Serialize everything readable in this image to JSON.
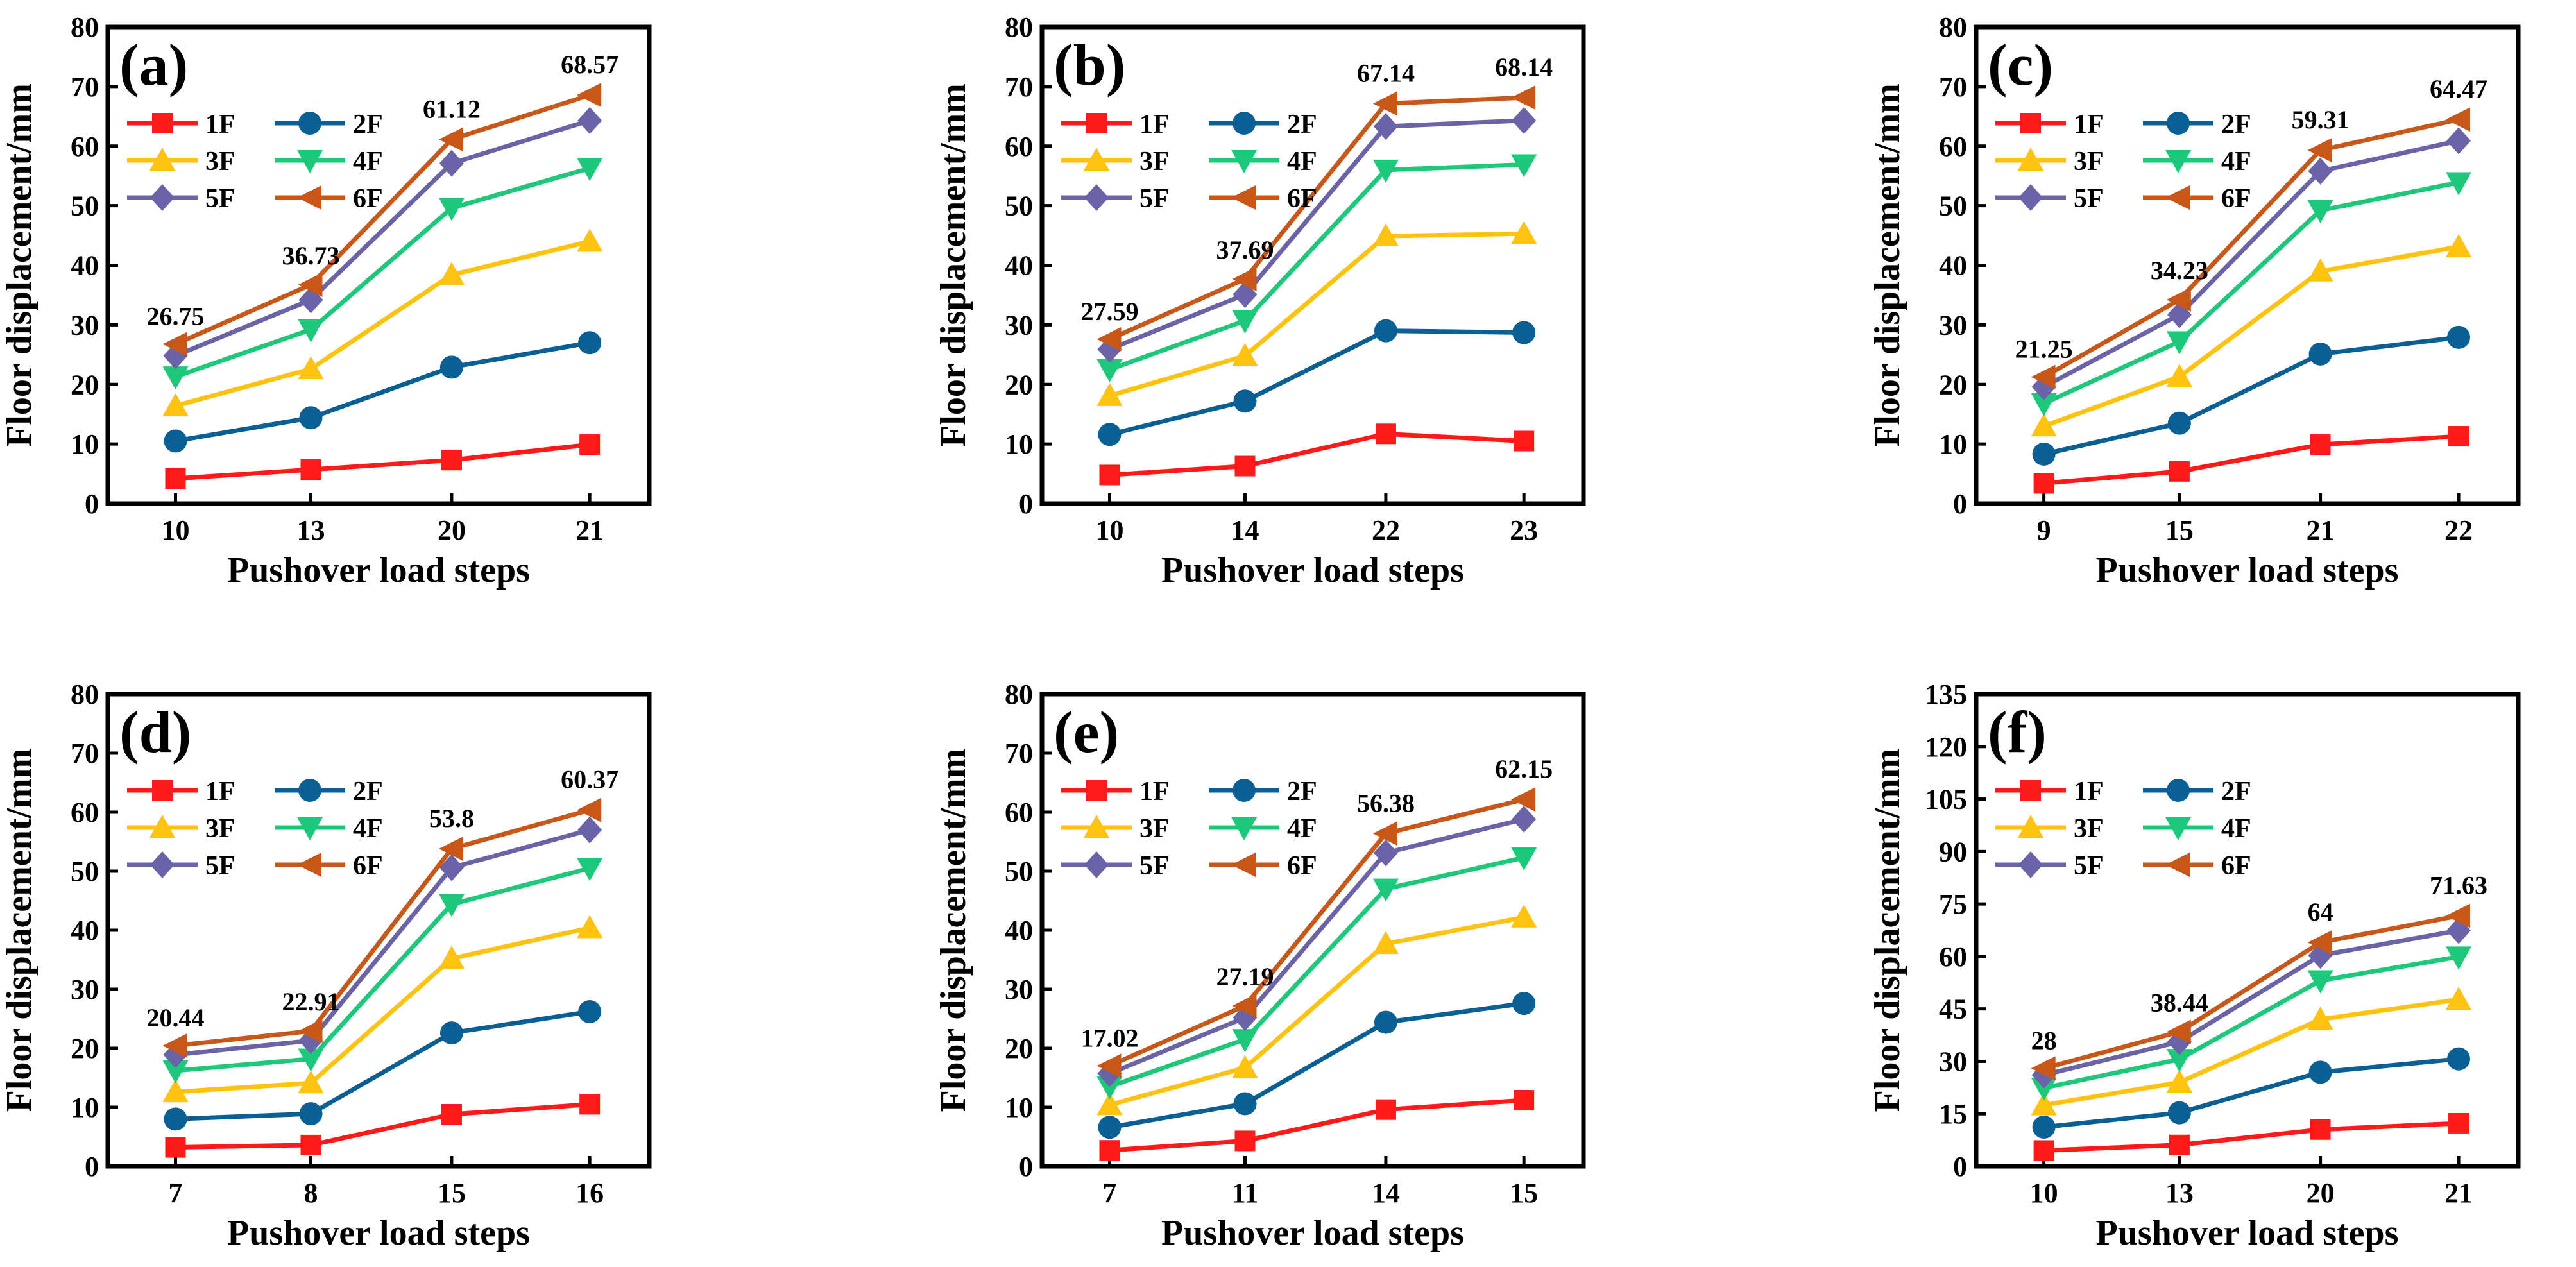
{
  "figure": {
    "xlabel": "Pushover load steps",
    "ylabel": "Floor displacement/mm"
  },
  "series_style": [
    {
      "name": "1F",
      "color": "#ff1a1a",
      "marker": "square"
    },
    {
      "name": "2F",
      "color": "#0a5f94",
      "marker": "circle"
    },
    {
      "name": "3F",
      "color": "#ffc20e",
      "marker": "triangle-up"
    },
    {
      "name": "4F",
      "color": "#1ec87a",
      "marker": "triangle-down"
    },
    {
      "name": "5F",
      "color": "#6b63a8",
      "marker": "diamond"
    },
    {
      "name": "6F",
      "color": "#c8581a",
      "marker": "triangle-left"
    }
  ],
  "chart_data": [
    {
      "type": "line",
      "panel_label": "(a)",
      "xlabel": "Pushover load steps",
      "ylabel": "Floor displacement/mm",
      "categories": [
        "10",
        "13",
        "20",
        "21"
      ],
      "ylim": [
        0,
        80
      ],
      "yticks": [
        0,
        10,
        20,
        30,
        40,
        50,
        60,
        70,
        80
      ],
      "series": [
        {
          "name": "1F",
          "values": [
            4.2,
            5.7,
            7.3,
            9.9
          ]
        },
        {
          "name": "2F",
          "values": [
            10.5,
            14.4,
            22.9,
            27.0
          ]
        },
        {
          "name": "3F",
          "values": [
            16.4,
            22.6,
            38.4,
            44.0
          ]
        },
        {
          "name": "4F",
          "values": [
            21.3,
            29.2,
            49.6,
            56.3
          ]
        },
        {
          "name": "5F",
          "values": [
            24.8,
            34.2,
            57.1,
            64.3
          ]
        },
        {
          "name": "6F",
          "values": [
            26.75,
            36.73,
            61.12,
            68.57
          ]
        }
      ],
      "annotations": [
        "26.75",
        "36.73",
        "61.12",
        "68.57"
      ]
    },
    {
      "type": "line",
      "panel_label": "(b)",
      "xlabel": "Pushover load steps",
      "ylabel": "Floor displacement/mm",
      "categories": [
        "10",
        "14",
        "22",
        "23"
      ],
      "ylim": [
        0,
        80
      ],
      "yticks": [
        0,
        10,
        20,
        30,
        40,
        50,
        60,
        70,
        80
      ],
      "series": [
        {
          "name": "1F",
          "values": [
            4.8,
            6.3,
            11.7,
            10.5
          ]
        },
        {
          "name": "2F",
          "values": [
            11.6,
            17.2,
            29.0,
            28.7
          ]
        },
        {
          "name": "3F",
          "values": [
            18.1,
            24.8,
            44.9,
            45.3
          ]
        },
        {
          "name": "4F",
          "values": [
            22.5,
            30.7,
            56.0,
            56.9
          ]
        },
        {
          "name": "5F",
          "values": [
            25.9,
            35.1,
            63.3,
            64.3
          ]
        },
        {
          "name": "6F",
          "values": [
            27.59,
            37.69,
            67.14,
            68.14
          ]
        }
      ],
      "annotations": [
        "27.59",
        "37.69",
        "67.14",
        "68.14"
      ]
    },
    {
      "type": "line",
      "panel_label": "(c)",
      "xlabel": "Pushover load steps",
      "ylabel": "Floor displacement/mm",
      "categories": [
        "9",
        "15",
        "21",
        "22"
      ],
      "ylim": [
        0,
        80
      ],
      "yticks": [
        0,
        10,
        20,
        30,
        40,
        50,
        60,
        70,
        80
      ],
      "series": [
        {
          "name": "1F",
          "values": [
            3.4,
            5.4,
            9.9,
            11.3
          ]
        },
        {
          "name": "2F",
          "values": [
            8.3,
            13.5,
            25.1,
            27.9
          ]
        },
        {
          "name": "3F",
          "values": [
            13.0,
            21.3,
            39.0,
            43.1
          ]
        },
        {
          "name": "4F",
          "values": [
            16.8,
            27.2,
            49.2,
            53.9
          ]
        },
        {
          "name": "5F",
          "values": [
            19.6,
            31.7,
            55.8,
            60.9
          ]
        },
        {
          "name": "6F",
          "values": [
            21.25,
            34.23,
            59.31,
            64.47
          ]
        }
      ],
      "annotations": [
        "21.25",
        "34.23",
        "59.31",
        "64.47"
      ]
    },
    {
      "type": "line",
      "panel_label": "(d)",
      "xlabel": "Pushover load steps",
      "ylabel": "Floor displacement/mm",
      "categories": [
        "7",
        "8",
        "15",
        "16"
      ],
      "ylim": [
        0,
        80
      ],
      "yticks": [
        0,
        10,
        20,
        30,
        40,
        50,
        60,
        70,
        80
      ],
      "series": [
        {
          "name": "1F",
          "values": [
            3.2,
            3.6,
            8.8,
            10.5
          ]
        },
        {
          "name": "2F",
          "values": [
            8.0,
            8.9,
            22.6,
            26.2
          ]
        },
        {
          "name": "3F",
          "values": [
            12.6,
            14.1,
            35.2,
            40.4
          ]
        },
        {
          "name": "4F",
          "values": [
            16.2,
            18.2,
            44.4,
            50.5
          ]
        },
        {
          "name": "5F",
          "values": [
            18.9,
            21.3,
            50.6,
            57.0
          ]
        },
        {
          "name": "6F",
          "values": [
            20.44,
            22.91,
            53.8,
            60.37
          ]
        }
      ],
      "annotations": [
        "20.44",
        "22.91",
        "53.8",
        "60.37"
      ]
    },
    {
      "type": "line",
      "panel_label": "(e)",
      "xlabel": "Pushover load steps",
      "ylabel": "Floor displacement/mm",
      "categories": [
        "7",
        "11",
        "14",
        "15"
      ],
      "ylim": [
        0,
        80
      ],
      "yticks": [
        0,
        10,
        20,
        30,
        40,
        50,
        60,
        70,
        80
      ],
      "series": [
        {
          "name": "1F",
          "values": [
            2.7,
            4.3,
            9.6,
            11.2
          ]
        },
        {
          "name": "2F",
          "values": [
            6.6,
            10.6,
            24.4,
            27.6
          ]
        },
        {
          "name": "3F",
          "values": [
            10.4,
            16.7,
            37.7,
            42.2
          ]
        },
        {
          "name": "4F",
          "values": [
            13.5,
            21.5,
            47.0,
            52.3
          ]
        },
        {
          "name": "5F",
          "values": [
            15.7,
            25.2,
            53.1,
            58.8
          ]
        },
        {
          "name": "6F",
          "values": [
            17.02,
            27.19,
            56.38,
            62.15
          ]
        }
      ],
      "annotations": [
        "17.02",
        "27.19",
        "56.38",
        "62.15"
      ]
    },
    {
      "type": "line",
      "panel_label": "(f)",
      "xlabel": "Pushover load steps",
      "ylabel": "Floor displacement/mm",
      "categories": [
        "10",
        "13",
        "20",
        "21"
      ],
      "ylim": [
        0,
        135
      ],
      "yticks": [
        0,
        15,
        30,
        45,
        60,
        75,
        90,
        105,
        120,
        135
      ],
      "series": [
        {
          "name": "1F",
          "values": [
            4.5,
            6.1,
            10.5,
            12.3
          ]
        },
        {
          "name": "2F",
          "values": [
            11.2,
            15.3,
            26.9,
            30.7
          ]
        },
        {
          "name": "3F",
          "values": [
            17.5,
            24.0,
            42.0,
            47.7
          ]
        },
        {
          "name": "4F",
          "values": [
            22.4,
            30.6,
            53.1,
            59.9
          ]
        },
        {
          "name": "5F",
          "values": [
            26.1,
            35.6,
            60.3,
            67.4
          ]
        },
        {
          "name": "6F",
          "values": [
            28.0,
            38.44,
            64.0,
            71.63
          ]
        }
      ],
      "annotations": [
        "28",
        "38.44",
        "64",
        "71.63"
      ]
    }
  ]
}
